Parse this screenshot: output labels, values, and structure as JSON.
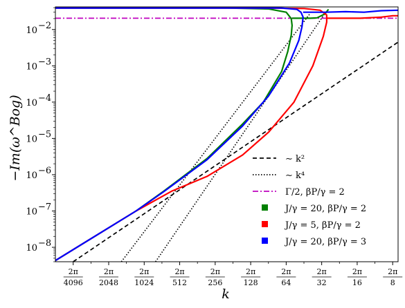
{
  "chart_data": {
    "type": "line",
    "title": "",
    "xlabel": "k",
    "ylabel": "−Im(ω^Bog)",
    "yscale": "log",
    "xscale": "log",
    "xlim": [
      "2π/5800",
      "2π/7.2"
    ],
    "ylim": [
      4e-09,
      0.042
    ],
    "grid": false,
    "legend_position": "lower-right",
    "x_ticks": [
      {
        "num": "2π",
        "den": "4096",
        "value_den": 4096
      },
      {
        "num": "2π",
        "den": "2048",
        "value_den": 2048
      },
      {
        "num": "2π",
        "den": "1024",
        "value_den": 1024
      },
      {
        "num": "2π",
        "den": "512",
        "value_den": 512
      },
      {
        "num": "2π",
        "den": "256",
        "value_den": 256
      },
      {
        "num": "2π",
        "den": "128",
        "value_den": 128
      },
      {
        "num": "2π",
        "den": "64",
        "value_den": 64
      },
      {
        "num": "2π",
        "den": "32",
        "value_den": 32
      },
      {
        "num": "2π",
        "den": "16",
        "value_den": 16
      },
      {
        "num": "2π",
        "den": "8",
        "value_den": 8
      }
    ],
    "y_ticks": [
      {
        "exp": -8,
        "base": "10",
        "sup": "−8"
      },
      {
        "exp": -7,
        "base": "10",
        "sup": "−7"
      },
      {
        "exp": -6,
        "base": "10",
        "sup": "−6"
      },
      {
        "exp": -5,
        "base": "10",
        "sup": "−5"
      },
      {
        "exp": -4,
        "base": "10",
        "sup": "−4"
      },
      {
        "exp": -3,
        "base": "10",
        "sup": "−3"
      },
      {
        "exp": -2,
        "base": "10",
        "sup": "−2"
      }
    ],
    "series": [
      {
        "name": "∼ k²",
        "style": "dashed",
        "color": "#000000",
        "points": [
          [
            4096,
            4e-09
          ],
          [
            7.2,
            0.0045
          ]
        ]
      },
      {
        "name": "∼ k⁴",
        "style": "dotted",
        "color": "#000000",
        "points": [
          [
            1600,
            4e-09
          ],
          [
            40,
            0.028
          ]
        ]
      },
      {
        "name": "",
        "style": "dotted",
        "color": "#000000",
        "points": [
          [
            820,
            4e-09
          ],
          [
            30,
            0.028
          ]
        ]
      },
      {
        "name": "Γ/2,  βP/γ = 2",
        "style": "dashdot",
        "color": "#bf00bf",
        "points": [
          [
            5800,
            0.0205
          ],
          [
            7.2,
            0.0205
          ]
        ]
      },
      {
        "name": "J/γ = 20,  βP/γ = 2",
        "style": "solid",
        "color": "#008000",
        "points": [
          [
            5800,
            4.3e-09
          ],
          [
            1200,
            1e-07
          ],
          [
            700,
            3.5e-07
          ],
          [
            300,
            2.8e-06
          ],
          [
            150,
            2.5e-05
          ],
          [
            100,
            0.0001
          ],
          [
            70,
            0.0007
          ],
          [
            62,
            0.0025
          ],
          [
            58,
            0.007
          ],
          [
            57,
            0.013
          ],
          [
            58,
            0.02
          ],
          [
            64,
            0.03
          ],
          [
            90,
            0.037
          ],
          [
            200,
            0.039
          ],
          [
            5800,
            0.039
          ]
        ],
        "upper_branch": [
          [
            57,
            0.0205
          ],
          [
            40,
            0.0205
          ],
          [
            35,
            0.021
          ],
          [
            30,
            0.027
          ],
          [
            28,
            0.036
          ]
        ]
      },
      {
        "name": "J/γ = 5,  βP/γ = 2",
        "style": "solid",
        "color": "#ff0000",
        "points": [
          [
            5800,
            4.3e-09
          ],
          [
            1200,
            1e-07
          ],
          [
            600,
            3.5e-07
          ],
          [
            300,
            9e-07
          ],
          [
            150,
            3.5e-06
          ],
          [
            90,
            1.5e-05
          ],
          [
            55,
            0.0001
          ],
          [
            38,
            0.001
          ],
          [
            31,
            0.0065
          ],
          [
            29,
            0.016
          ],
          [
            29,
            0.025
          ],
          [
            33,
            0.034
          ],
          [
            45,
            0.038
          ],
          [
            100,
            0.039
          ],
          [
            5800,
            0.039
          ]
        ],
        "upper_branch": [
          [
            29,
            0.0205
          ],
          [
            15,
            0.0205
          ],
          [
            10,
            0.022
          ],
          [
            8,
            0.024
          ],
          [
            7.2,
            0.024
          ]
        ]
      },
      {
        "name": "J/γ = 20,  βP/γ = 3",
        "style": "solid",
        "color": "#0000ff",
        "points": [
          [
            5800,
            4.3e-09
          ],
          [
            1200,
            1e-07
          ],
          [
            700,
            3.4e-07
          ],
          [
            300,
            2.6e-06
          ],
          [
            150,
            2.2e-05
          ],
          [
            90,
            0.00015
          ],
          [
            60,
            0.0012
          ],
          [
            50,
            0.005
          ],
          [
            47,
            0.012
          ],
          [
            46,
            0.022
          ],
          [
            48,
            0.03
          ],
          [
            52,
            0.036
          ],
          [
            70,
            0.039
          ],
          [
            5800,
            0.039
          ]
        ],
        "upper_branch": [
          [
            46,
            0.03
          ],
          [
            30,
            0.03
          ],
          [
            20,
            0.031
          ],
          [
            14,
            0.03
          ],
          [
            10,
            0.033
          ],
          [
            7.2,
            0.034
          ]
        ]
      }
    ]
  }
}
